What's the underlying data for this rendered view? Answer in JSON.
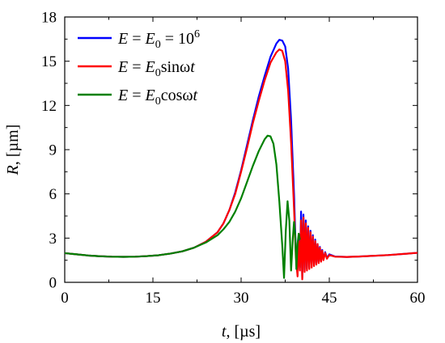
{
  "chart_data": {
    "type": "line",
    "xlabel": {
      "var": "t",
      "unit": ", [µs]"
    },
    "ylabel": {
      "var": "R",
      "unit": ", [µm]"
    },
    "xlim": [
      0,
      60
    ],
    "ylim": [
      0,
      18
    ],
    "xticks": [
      0,
      15,
      30,
      45,
      60
    ],
    "yticks": [
      0,
      3,
      6,
      9,
      12,
      15,
      18
    ],
    "x_minor_step": 7.5,
    "y_minor_step": 1.5,
    "grid": false,
    "legend_position": "top-left",
    "series": [
      {
        "name": "E = E0 = 10^6",
        "legend": {
          "lhs": "E",
          "rhs_var": "E",
          "rhs_sub": "0",
          "rhs_tail": " = 10",
          "rhs_sup": "6"
        },
        "color": "#0000ff",
        "x": [
          0,
          2,
          4,
          6,
          8,
          10,
          12,
          14,
          16,
          18,
          20,
          22,
          24,
          26,
          27,
          28,
          29,
          30,
          31,
          32,
          33,
          34,
          35,
          36,
          36.5,
          37,
          37.5,
          38,
          38.5,
          39,
          39.3,
          39.6,
          39.8,
          40.0,
          40.2,
          40.4,
          40.6,
          40.8,
          41.0,
          41.2,
          41.4,
          41.6,
          41.8,
          42.0,
          42.2,
          42.4,
          42.6,
          42.8,
          43.0,
          43.2,
          43.4,
          43.6,
          43.8,
          44.0,
          44.3,
          44.6,
          45.0,
          46,
          48,
          50,
          55,
          60
        ],
        "y": [
          1.98,
          1.9,
          1.82,
          1.77,
          1.74,
          1.73,
          1.74,
          1.78,
          1.84,
          1.95,
          2.1,
          2.35,
          2.75,
          3.4,
          4.0,
          4.9,
          6.1,
          7.6,
          9.3,
          11.0,
          12.6,
          14.0,
          15.3,
          16.2,
          16.45,
          16.4,
          16.0,
          14.5,
          11.0,
          6.0,
          2.2,
          0.5,
          3.2,
          1.0,
          4.8,
          0.3,
          4.6,
          0.8,
          4.2,
          0.9,
          3.8,
          1.0,
          3.5,
          1.1,
          3.2,
          1.2,
          2.9,
          1.3,
          2.6,
          1.4,
          2.4,
          1.45,
          2.2,
          1.55,
          2.05,
          1.65,
          1.9,
          1.75,
          1.72,
          1.75,
          1.85,
          2.0
        ]
      },
      {
        "name": "E = E0 sin ωt",
        "legend": {
          "lhs": "E",
          "rhs_var": "E",
          "rhs_sub": "0",
          "rhs_tail": "sinω",
          "rhs_end": "t"
        },
        "color": "#ff0000",
        "x": [
          0,
          2,
          4,
          6,
          8,
          10,
          12,
          14,
          16,
          18,
          20,
          22,
          24,
          26,
          27,
          28,
          29,
          30,
          31,
          32,
          33,
          34,
          35,
          36,
          36.5,
          37,
          37.5,
          38,
          38.5,
          39,
          39.3,
          39.6,
          39.8,
          40.0,
          40.2,
          40.4,
          40.6,
          40.8,
          41.0,
          41.2,
          41.4,
          41.6,
          41.8,
          42.0,
          42.2,
          42.4,
          42.6,
          42.8,
          43.0,
          43.2,
          43.4,
          43.6,
          43.8,
          44.0,
          44.3,
          44.6,
          45.0,
          46,
          48,
          50,
          55,
          60
        ],
        "y": [
          1.98,
          1.9,
          1.82,
          1.77,
          1.74,
          1.73,
          1.74,
          1.78,
          1.84,
          1.95,
          2.1,
          2.35,
          2.75,
          3.4,
          4.0,
          4.9,
          6.0,
          7.5,
          9.1,
          10.8,
          12.3,
          13.7,
          14.9,
          15.6,
          15.8,
          15.7,
          15.0,
          13.0,
          9.5,
          5.0,
          1.8,
          0.4,
          2.8,
          0.8,
          4.2,
          0.2,
          4.4,
          0.7,
          4.0,
          0.8,
          3.7,
          0.9,
          3.4,
          1.0,
          3.1,
          1.1,
          2.8,
          1.2,
          2.6,
          1.3,
          2.35,
          1.4,
          2.15,
          1.5,
          2.0,
          1.6,
          1.85,
          1.74,
          1.72,
          1.75,
          1.85,
          2.0
        ]
      },
      {
        "name": "E = E0 cos ωt",
        "legend": {
          "lhs": "E",
          "rhs_var": "E",
          "rhs_sub": "0",
          "rhs_tail": "cosω",
          "rhs_end": "t"
        },
        "color": "#008000",
        "x": [
          0,
          2,
          4,
          6,
          8,
          10,
          12,
          14,
          16,
          18,
          20,
          22,
          24,
          26,
          27,
          28,
          29,
          30,
          31,
          32,
          33,
          34,
          34.5,
          35,
          35.5,
          36,
          36.5,
          37,
          37.3,
          37.6,
          37.9,
          38.2,
          38.5,
          38.8,
          39.0,
          39.2,
          39.4,
          39.6,
          39.8,
          40.0
        ],
        "y": [
          1.98,
          1.9,
          1.82,
          1.77,
          1.74,
          1.73,
          1.74,
          1.78,
          1.84,
          1.95,
          2.1,
          2.35,
          2.7,
          3.2,
          3.6,
          4.1,
          4.8,
          5.7,
          6.8,
          7.9,
          8.9,
          9.7,
          9.95,
          9.9,
          9.4,
          8.0,
          5.5,
          2.5,
          0.3,
          3.5,
          5.5,
          4.2,
          0.8,
          3.0,
          4.1,
          3.2,
          0.9,
          2.6,
          3.3,
          2.9
        ]
      }
    ]
  }
}
